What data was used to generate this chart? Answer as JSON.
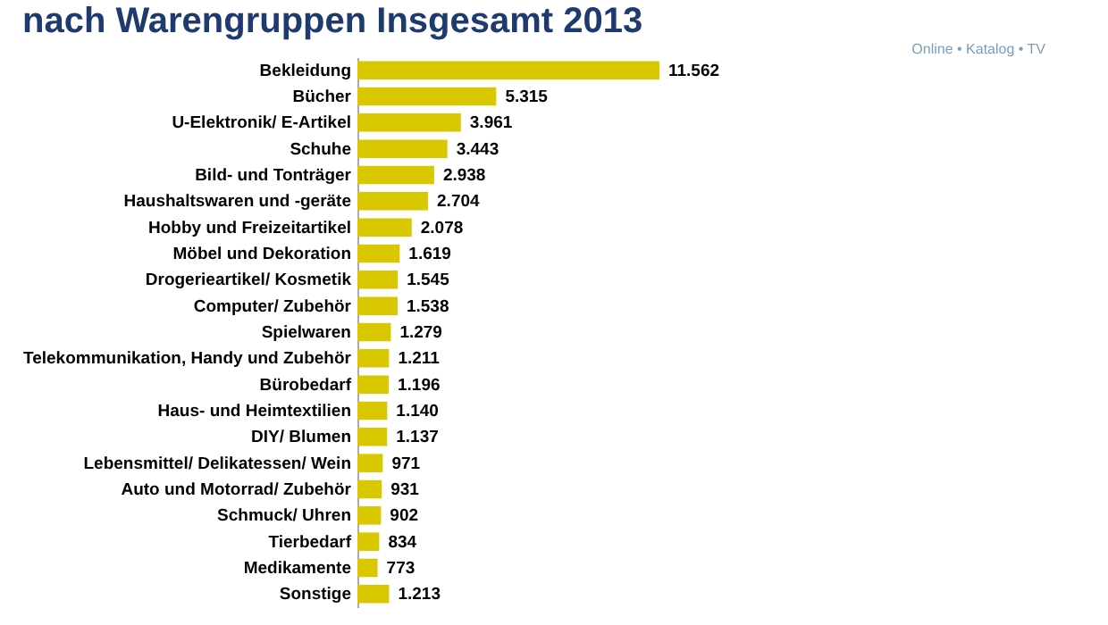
{
  "chart_data": {
    "type": "bar",
    "orientation": "horizontal",
    "title": "nach Warengruppen  Insgesamt 2013",
    "annotations": [
      "Online • Katalog • TV"
    ],
    "categories": [
      "Bekleidung",
      "Bücher",
      "U-Elektronik/ E-Artikel",
      "Schuhe",
      "Bild- und Tonträger",
      "Haushaltswaren und -geräte",
      "Hobby und Freizeitartikel",
      "Möbel und Dekoration",
      "Drogerieartikel/ Kosmetik",
      "Computer/ Zubehör",
      "Spielwaren",
      "Telekommunikation, Handy und Zubehör",
      "Bürobedarf",
      "Haus- und Heimtextilien",
      "DIY/ Blumen",
      "Lebensmittel/ Delikatessen/ Wein",
      "Auto und Motorrad/ Zubehör",
      "Schmuck/ Uhren",
      "Tierbedarf",
      "Medikamente",
      "Sonstige"
    ],
    "values": [
      11562,
      5315,
      3961,
      3443,
      2938,
      2704,
      2078,
      1619,
      1545,
      1538,
      1279,
      1211,
      1196,
      1140,
      1137,
      971,
      931,
      902,
      834,
      773,
      1213
    ],
    "value_labels": [
      "11.562",
      "5.315",
      "3.961",
      "3.443",
      "2.938",
      "2.704",
      "2.078",
      "1.619",
      "1.545",
      "1.538",
      "1.279",
      "1.211",
      "1.196",
      "1.140",
      "1.137",
      "971",
      "931",
      "902",
      "834",
      "773",
      "1.213"
    ],
    "color": "#d9c800",
    "grid": false
  }
}
